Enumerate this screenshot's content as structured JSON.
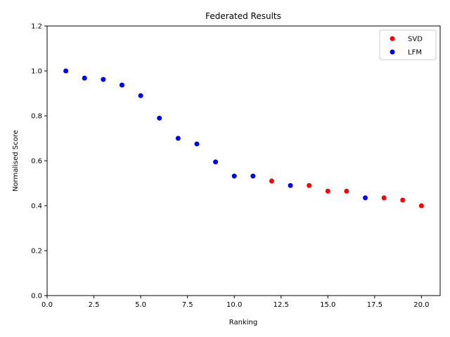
{
  "chart_data": {
    "type": "scatter",
    "title": "Federated Results",
    "xlabel": "Ranking",
    "ylabel": "Normalised Score",
    "xlim": [
      0,
      21
    ],
    "ylim": [
      0,
      1.2
    ],
    "xticks": [
      0,
      2.5,
      5,
      7.5,
      10,
      12.5,
      15,
      17.5,
      20
    ],
    "xtick_labels": [
      "0.0",
      "2.5",
      "5.0",
      "7.5",
      "10.0",
      "12.5",
      "15.0",
      "17.5",
      "20.0"
    ],
    "yticks": [
      0,
      0.2,
      0.4,
      0.6,
      0.8,
      1.0,
      1.2
    ],
    "ytick_labels": [
      "0.0",
      "0.2",
      "0.4",
      "0.6",
      "0.8",
      "1.0",
      "1.2"
    ],
    "grid": false,
    "legend_position": "top-right",
    "series": [
      {
        "name": "SVD",
        "color": "#ff0000",
        "x": [
          12,
          14,
          15,
          16,
          18,
          19,
          20
        ],
        "y": [
          0.51,
          0.49,
          0.465,
          0.465,
          0.435,
          0.425,
          0.4
        ]
      },
      {
        "name": "LFM",
        "color": "#0000ff",
        "x": [
          1,
          2,
          3,
          4,
          5,
          6,
          7,
          8,
          9,
          10,
          11,
          13,
          17
        ],
        "y": [
          1.0,
          0.968,
          0.962,
          0.937,
          0.89,
          0.79,
          0.7,
          0.675,
          0.595,
          0.532,
          0.532,
          0.49,
          0.435
        ]
      }
    ]
  }
}
